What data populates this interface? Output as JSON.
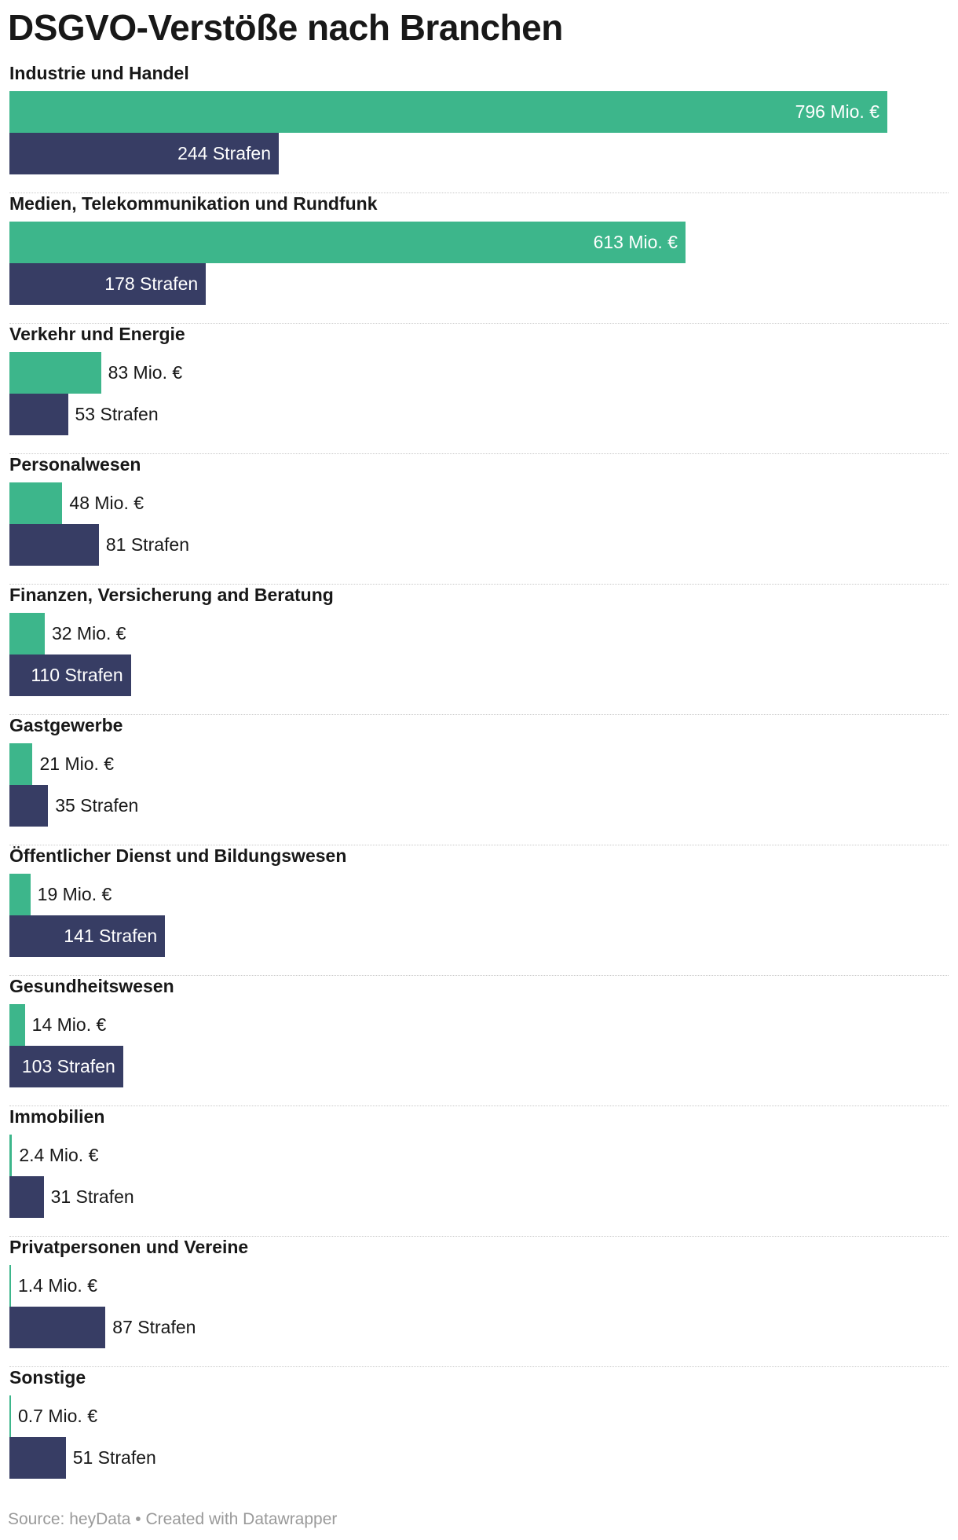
{
  "title": "DSGVO-Verstöße nach Branchen",
  "footer": "Source: heyData • Created with Datawrapper",
  "colors": {
    "fines_amount": "#3db68b",
    "fines_count": "#373d64"
  },
  "chart_data": {
    "type": "bar",
    "orientation": "horizontal",
    "title": "DSGVO-Verstöße nach Branchen",
    "categories": [
      "Industrie und Handel",
      "Medien, Telekommunikation und Rundfunk",
      "Verkehr und Energie",
      "Personalwesen",
      "Finanzen, Versicherung and Beratung",
      "Gastgewerbe",
      "Öffentlicher Dienst und Bildungswesen",
      "Gesundheitswesen",
      "Immobilien",
      "Privatpersonen und Vereine",
      "Sonstige"
    ],
    "series": [
      {
        "values": [
          796,
          613,
          83,
          48,
          32,
          21,
          19,
          14,
          2.4,
          1.4,
          0.7
        ],
        "labels": [
          "796 Mio. €",
          "613 Mio. €",
          "83 Mio. €",
          "48 Mio. €",
          "32 Mio. €",
          "21 Mio. €",
          "19 Mio. €",
          "14 Mio. €",
          "2.4 Mio. €",
          "1.4 Mio. €",
          "0.7 Mio. €"
        ],
        "color": "#3db68b"
      },
      {
        "values": [
          244,
          178,
          53,
          81,
          110,
          35,
          141,
          103,
          31,
          87,
          51
        ],
        "labels": [
          "244 Strafen",
          "178 Strafen",
          "53 Strafen",
          "81 Strafen",
          "110 Strafen",
          "35 Strafen",
          "141 Strafen",
          "103 Strafen",
          "31 Strafen",
          "87 Strafen",
          "51 Strafen"
        ],
        "color": "#373d64"
      }
    ]
  }
}
